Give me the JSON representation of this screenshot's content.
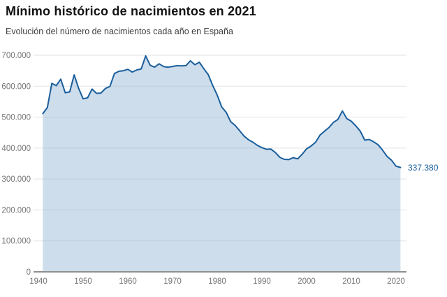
{
  "header": {
    "title": "Mínimo histórico de nacimientos en 2021",
    "subtitle": "Evolución del número de nacimientos cada año en España"
  },
  "chart_data": {
    "type": "area",
    "title": "Mínimo histórico de nacimientos en 2021",
    "subtitle": "Evolución del número de nacimientos cada año en España",
    "xlabel": "",
    "ylabel": "",
    "ylim": [
      0,
      700000
    ],
    "grid": true,
    "xticks": [
      "1940",
      "1950",
      "1960",
      "1970",
      "1980",
      "1990",
      "2000",
      "2010",
      "2020"
    ],
    "ytick_labels": [
      "0",
      "100.000",
      "200.000",
      "300.000",
      "400.000",
      "500.000",
      "600.000",
      "700.000"
    ],
    "end_label": "337.380",
    "years": [
      1941,
      1942,
      1943,
      1944,
      1945,
      1946,
      1947,
      1948,
      1949,
      1950,
      1951,
      1952,
      1953,
      1954,
      1955,
      1956,
      1957,
      1958,
      1959,
      1960,
      1961,
      1962,
      1963,
      1964,
      1965,
      1966,
      1967,
      1968,
      1969,
      1970,
      1971,
      1972,
      1973,
      1974,
      1975,
      1976,
      1977,
      1978,
      1979,
      1980,
      1981,
      1982,
      1983,
      1984,
      1985,
      1986,
      1987,
      1988,
      1989,
      1990,
      1991,
      1992,
      1993,
      1994,
      1995,
      1996,
      1997,
      1998,
      1999,
      2000,
      2001,
      2002,
      2003,
      2004,
      2005,
      2006,
      2007,
      2008,
      2009,
      2010,
      2011,
      2012,
      2013,
      2014,
      2015,
      2016,
      2017,
      2018,
      2019,
      2020,
      2021
    ],
    "values": [
      511444,
      530845,
      609009,
      601709,
      622611,
      578847,
      581353,
      636519,
      592901,
      559162,
      562343,
      590780,
      576662,
      577886,
      592792,
      598977,
      640587,
      647991,
      649841,
      654474,
      645567,
      652455,
      655837,
      697697,
      667571,
      661285,
      672158,
      663375,
      661183,
      663667,
      666206,
      665573,
      666336,
      682010,
      669378,
      677456,
      656357,
      636892,
      601992,
      571018,
      533008,
      515706,
      485352,
      473281,
      456298,
      438750,
      426782,
      418919,
      408434,
      401425,
      395989,
      396747,
      385786,
      370148,
      363469,
      362626,
      369035,
      365193,
      380130,
      397632,
      406380,
      418846,
      441881,
      454591,
      466371,
      482957,
      492527,
      519779,
      494997,
      486575,
      471999,
      454648,
      425715,
      427595,
      420290,
      410583,
      393181,
      372777,
      360617,
      341315,
      337380
    ],
    "colors": {
      "line": "#1a5e9c",
      "fill": "rgba(144,180,210,0.45)",
      "grid": "#e2e2e2",
      "axis": "#8f8f8f",
      "tick_text": "#757575",
      "annotation": "#1a5e9c"
    }
  }
}
